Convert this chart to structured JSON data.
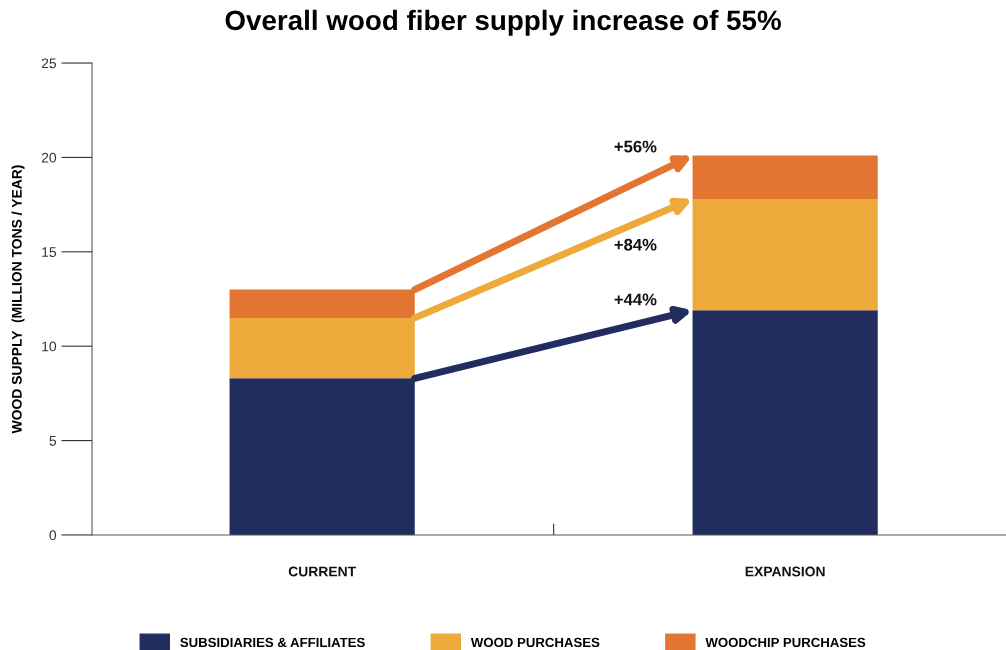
{
  "chart_data": {
    "type": "bar",
    "title": "Overall wood fiber supply increase of 55%",
    "ylabel": "WOOD SUPPLY  (MILLION TONS / YEAR)",
    "categories": [
      "CURRENT",
      "EXPANSION"
    ],
    "stacked": true,
    "series": [
      {
        "name": "SUBSIDIARIES & AFFILIATES",
        "color": "#212d5e",
        "values": [
          8.3,
          11.9
        ]
      },
      {
        "name": "WOOD PURCHASES",
        "color": "#edaa3b",
        "values": [
          3.2,
          5.9
        ]
      },
      {
        "name": "WOODCHIP PURCHASES",
        "color": "#e37533",
        "values": [
          1.5,
          2.3
        ]
      }
    ],
    "annotations": [
      "+44%",
      "+84%",
      "+56%"
    ],
    "ylim": [
      0,
      25
    ],
    "yticks": [
      0,
      5,
      10,
      15,
      20,
      25
    ],
    "grid": false,
    "legend": "bottom"
  }
}
